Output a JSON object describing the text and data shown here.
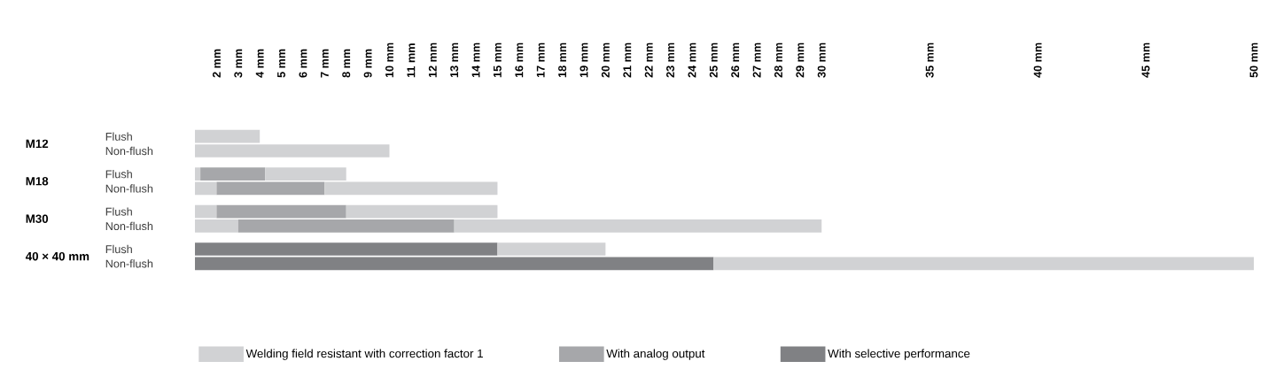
{
  "chart_data": {
    "type": "bar",
    "orientation": "horizontal",
    "categories": [
      "Flush",
      "Non-flush",
      "Flush",
      "Non-flush",
      "Flush",
      "Non-flush",
      "Flush",
      "Non-flush"
    ],
    "annotations": [
      "M12",
      "M18",
      "M30",
      "40 × 40 mm"
    ],
    "series": [
      {
        "name": "Welding field resistant with correction factor 1",
        "color": "#d1d2d4",
        "base": [
          1,
          1,
          1,
          1,
          1,
          1,
          null,
          null
        ],
        "values": [
          3,
          9,
          0.25,
          1,
          1,
          2,
          null,
          null
        ]
      },
      {
        "name": "With analog output",
        "color": "#a6a7aa",
        "base": [
          null,
          null,
          1.25,
          2,
          2,
          3,
          null,
          null
        ],
        "values": [
          null,
          null,
          3,
          5,
          6,
          10,
          null,
          null
        ]
      },
      {
        "name": "With selective performance",
        "color": "#808184",
        "base": [
          null,
          null,
          null,
          null,
          null,
          null,
          1,
          1
        ],
        "values": [
          null,
          null,
          null,
          null,
          null,
          null,
          14,
          24
        ]
      },
      {
        "color": "#d1d2d4",
        "base": [
          null,
          null,
          4.25,
          7,
          8,
          13,
          15,
          25
        ],
        "values": [
          null,
          null,
          3.75,
          8,
          7,
          17,
          5,
          25
        ]
      }
    ],
    "xlim": [
      1,
      50
    ],
    "xticks": [
      {
        "value": 2,
        "label": "2 mm"
      },
      {
        "value": 3,
        "label": "3 mm"
      },
      {
        "value": 4,
        "label": "4 mm"
      },
      {
        "value": 5,
        "label": "5 mm"
      },
      {
        "value": 6,
        "label": "6 mm"
      },
      {
        "value": 7,
        "label": "7 mm"
      },
      {
        "value": 8,
        "label": "8 mm"
      },
      {
        "value": 9,
        "label": "9 mm"
      },
      {
        "value": 10,
        "label": "10 mm"
      },
      {
        "value": 11,
        "label": "11 mm"
      },
      {
        "value": 12,
        "label": "12 mm"
      },
      {
        "value": 13,
        "label": "13 mm"
      },
      {
        "value": 14,
        "label": "14 mm"
      },
      {
        "value": 15,
        "label": "15 mm"
      },
      {
        "value": 16,
        "label": "16 mm"
      },
      {
        "value": 17,
        "label": "17 mm"
      },
      {
        "value": 18,
        "label": "18 mm"
      },
      {
        "value": 19,
        "label": "19 mm"
      },
      {
        "value": 20,
        "label": "20 mm"
      },
      {
        "value": 21,
        "label": "21 mm"
      },
      {
        "value": 22,
        "label": "22 mm"
      },
      {
        "value": 23,
        "label": "23 mm"
      },
      {
        "value": 24,
        "label": "24 mm"
      },
      {
        "value": 25,
        "label": "25 mm"
      },
      {
        "value": 26,
        "label": "26 mm"
      },
      {
        "value": 27,
        "label": "27 mm"
      },
      {
        "value": 28,
        "label": "28 mm"
      },
      {
        "value": 29,
        "label": "29 mm"
      },
      {
        "value": 30,
        "label": "30 mm"
      },
      {
        "value": 35,
        "label": "35 mm"
      },
      {
        "value": 40,
        "label": "40 mm"
      },
      {
        "value": 45,
        "label": "45 mm"
      },
      {
        "value": 50,
        "label": "50 mm"
      }
    ],
    "legend": "bottom"
  }
}
